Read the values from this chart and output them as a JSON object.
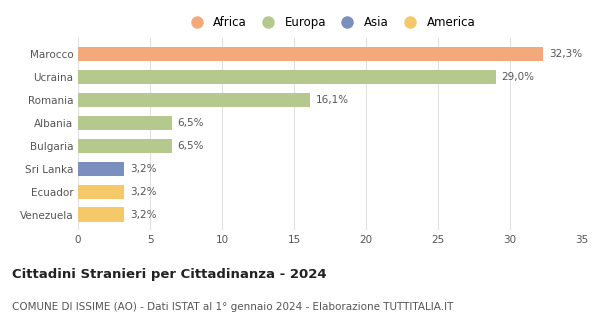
{
  "categories": [
    "Marocco",
    "Ucraina",
    "Romania",
    "Albania",
    "Bulgaria",
    "Sri Lanka",
    "Ecuador",
    "Venezuela"
  ],
  "values": [
    32.3,
    29.0,
    16.1,
    6.5,
    6.5,
    3.2,
    3.2,
    3.2
  ],
  "labels": [
    "32,3%",
    "29,0%",
    "16,1%",
    "6,5%",
    "6,5%",
    "3,2%",
    "3,2%",
    "3,2%"
  ],
  "colors": [
    "#F4A97B",
    "#B5C98E",
    "#B5C98E",
    "#B5C98E",
    "#B5C98E",
    "#7B8FBF",
    "#F5C96A",
    "#F5C96A"
  ],
  "legend": [
    {
      "label": "Africa",
      "color": "#F4A97B"
    },
    {
      "label": "Europa",
      "color": "#B5C98E"
    },
    {
      "label": "Asia",
      "color": "#7B8FBF"
    },
    {
      "label": "America",
      "color": "#F5C96A"
    }
  ],
  "xlim": [
    0,
    35
  ],
  "xticks": [
    0,
    5,
    10,
    15,
    20,
    25,
    30,
    35
  ],
  "title": "Cittadini Stranieri per Cittadinanza - 2024",
  "subtitle": "COMUNE DI ISSIME (AO) - Dati ISTAT al 1° gennaio 2024 - Elaborazione TUTTITALIA.IT",
  "title_fontsize": 9.5,
  "subtitle_fontsize": 7.5,
  "label_fontsize": 7.5,
  "tick_fontsize": 7.5,
  "legend_fontsize": 8.5,
  "background_color": "#ffffff",
  "grid_color": "#e0e0e0",
  "bar_height": 0.62
}
